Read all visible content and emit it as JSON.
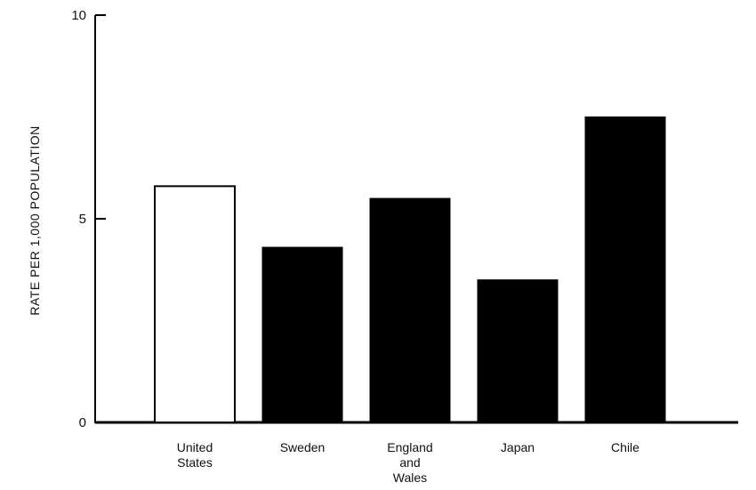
{
  "chart_data": {
    "type": "bar",
    "title": "",
    "xlabel": "",
    "ylabel": "RATE PER 1,000 POPULATION",
    "ylim": [
      0,
      10
    ],
    "yticks": [
      0,
      5,
      10
    ],
    "grid": false,
    "legend": "none",
    "categories": [
      [
        "United",
        "States"
      ],
      [
        "Sweden"
      ],
      [
        "England",
        "and",
        "Wales"
      ],
      [
        "Japan"
      ],
      [
        "Chile"
      ]
    ],
    "values": [
      5.8,
      4.3,
      5.5,
      3.5,
      7.5
    ],
    "bar_styles": [
      "outline",
      "filled",
      "filled",
      "filled",
      "filled"
    ],
    "colors": {
      "bar_fill": "#000000",
      "outline_fill": "#ffffff",
      "axis": "#000000"
    }
  }
}
